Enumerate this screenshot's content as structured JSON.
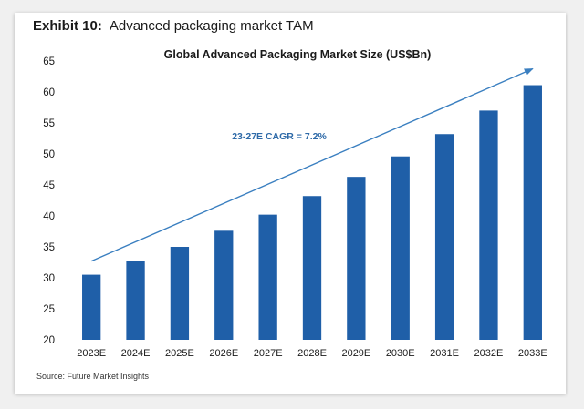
{
  "header": {
    "exhibit_label": "Exhibit 10:",
    "exhibit_title": "Advanced packaging market TAM"
  },
  "source": "Source: Future Market Insights",
  "chart_data": {
    "type": "bar",
    "title": "Global Advanced Packaging Market Size (US$Bn)",
    "xlabel": "",
    "ylabel": "",
    "categories": [
      "2023E",
      "2024E",
      "2025E",
      "2026E",
      "2027E",
      "2028E",
      "2029E",
      "2030E",
      "2031E",
      "2032E",
      "2033E"
    ],
    "values": [
      30.5,
      32.7,
      35.0,
      37.6,
      40.2,
      43.2,
      46.3,
      49.6,
      53.2,
      57.0,
      61.1
    ],
    "ylim": [
      20,
      65
    ],
    "yticks": [
      20,
      25,
      30,
      35,
      40,
      45,
      50,
      55,
      60,
      65
    ],
    "grid": false,
    "bar_color": "#1f5fa8",
    "arrow_color": "#3a7fc0",
    "annotation": "23-27E CAGR = 7.2%"
  }
}
